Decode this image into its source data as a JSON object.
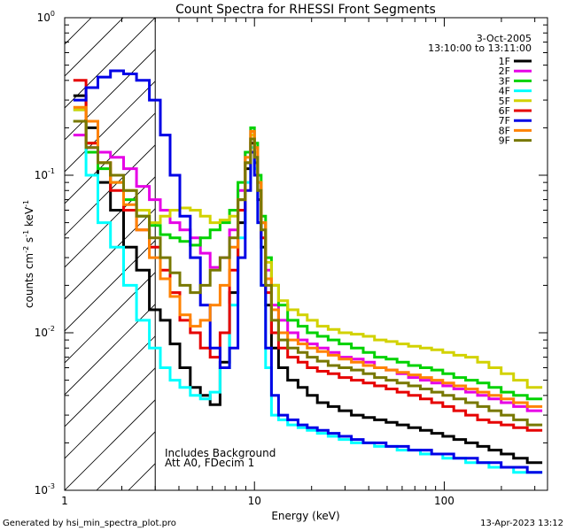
{
  "chart_data": {
    "type": "line",
    "step": true,
    "title": "Count Spectra for RHESSI Front Segments",
    "xlabel": "Energy (keV)",
    "ylabel_base": "counts cm",
    "ylabel_sup1": "-2",
    "ylabel_mid1": " s",
    "ylabel_sup2": "-1",
    "ylabel_mid2": " keV",
    "ylabel_sup3": "-1",
    "xscale": "log",
    "yscale": "log",
    "xlim": [
      1,
      350
    ],
    "ylim": [
      0.001,
      1
    ],
    "x_ticks": [
      {
        "value": 1,
        "label": "1"
      },
      {
        "value": 10,
        "label": "10"
      },
      {
        "value": 100,
        "label": "100"
      }
    ],
    "y_ticks": [
      {
        "value": 1,
        "base": "10",
        "exp": "0"
      },
      {
        "value": 0.1,
        "base": "10",
        "exp": "-1"
      },
      {
        "value": 0.01,
        "base": "10",
        "exp": "-2"
      },
      {
        "value": 0.001,
        "base": "10",
        "exp": "-3"
      }
    ],
    "shaded_region": {
      "x_from": 1,
      "x_to": 3
    },
    "date": "3-Oct-2005",
    "time_range": "13:10:00 to 13:11:00",
    "annotations": [
      "Includes Background",
      "Att A0, FDecim 1"
    ],
    "footer_left": "Generated by hsi_min_spectra_plot.pro",
    "footer_right": "13-Apr-2023 13:12",
    "energies": [
      1.2,
      1.4,
      1.6,
      1.9,
      2.2,
      2.6,
      3.0,
      3.4,
      3.8,
      4.3,
      4.9,
      5.5,
      6.2,
      7.0,
      7.8,
      8.6,
      9.3,
      9.8,
      10.2,
      10.6,
      11.1,
      11.8,
      12.8,
      14,
      16,
      18,
      20,
      23,
      26,
      30,
      35,
      40,
      46,
      53,
      60,
      70,
      80,
      92,
      105,
      120,
      140,
      160,
      185,
      215,
      250,
      300
    ],
    "series": [
      {
        "name": "1F",
        "color": "#000000",
        "values": [
          0.32,
          0.2,
          0.09,
          0.06,
          0.035,
          0.025,
          0.014,
          0.012,
          0.0085,
          0.006,
          0.0045,
          0.004,
          0.0035,
          0.0065,
          0.018,
          0.05,
          0.11,
          0.16,
          0.12,
          0.07,
          0.035,
          0.015,
          0.008,
          0.006,
          0.005,
          0.0045,
          0.004,
          0.0036,
          0.0034,
          0.0032,
          0.003,
          0.0029,
          0.0028,
          0.0027,
          0.0026,
          0.0025,
          0.0024,
          0.0023,
          0.0022,
          0.0021,
          0.002,
          0.0019,
          0.0018,
          0.0017,
          0.0016,
          0.0015
        ]
      },
      {
        "name": "2F",
        "color": "#e600e6",
        "values": [
          0.18,
          0.15,
          0.14,
          0.13,
          0.11,
          0.085,
          0.07,
          0.06,
          0.05,
          0.045,
          0.04,
          0.032,
          0.026,
          0.03,
          0.045,
          0.08,
          0.14,
          0.19,
          0.15,
          0.09,
          0.05,
          0.025,
          0.015,
          0.012,
          0.01,
          0.009,
          0.0085,
          0.008,
          0.0075,
          0.007,
          0.0068,
          0.0065,
          0.006,
          0.0058,
          0.0055,
          0.0052,
          0.005,
          0.0048,
          0.0046,
          0.0044,
          0.0042,
          0.004,
          0.0038,
          0.0036,
          0.0034,
          0.0032
        ]
      },
      {
        "name": "3F",
        "color": "#00d200",
        "values": [
          0.22,
          0.14,
          0.11,
          0.09,
          0.07,
          0.055,
          0.048,
          0.042,
          0.04,
          0.038,
          0.036,
          0.04,
          0.045,
          0.05,
          0.06,
          0.09,
          0.14,
          0.2,
          0.16,
          0.1,
          0.055,
          0.03,
          0.02,
          0.015,
          0.012,
          0.011,
          0.01,
          0.0095,
          0.009,
          0.0085,
          0.008,
          0.0075,
          0.007,
          0.0068,
          0.0065,
          0.0062,
          0.006,
          0.0058,
          0.0055,
          0.0052,
          0.005,
          0.0048,
          0.0045,
          0.0042,
          0.004,
          0.0038
        ]
      },
      {
        "name": "4F",
        "color": "#00ffff",
        "values": [
          0.26,
          0.1,
          0.05,
          0.035,
          0.02,
          0.012,
          0.008,
          0.006,
          0.005,
          0.0045,
          0.004,
          0.0038,
          0.0042,
          0.006,
          0.015,
          0.04,
          0.09,
          0.15,
          0.11,
          0.05,
          0.02,
          0.006,
          0.003,
          0.0028,
          0.0026,
          0.0025,
          0.0024,
          0.0023,
          0.0022,
          0.0021,
          0.002,
          0.002,
          0.0019,
          0.0019,
          0.0018,
          0.0018,
          0.0017,
          0.0017,
          0.0016,
          0.0016,
          0.0015,
          0.0015,
          0.0014,
          0.0014,
          0.0013,
          0.0013
        ]
      },
      {
        "name": "5F",
        "color": "#d2d200",
        "values": [
          0.26,
          0.16,
          0.12,
          0.1,
          0.08,
          0.06,
          0.05,
          0.055,
          0.06,
          0.062,
          0.06,
          0.055,
          0.05,
          0.052,
          0.055,
          0.07,
          0.12,
          0.18,
          0.14,
          0.09,
          0.05,
          0.028,
          0.02,
          0.016,
          0.014,
          0.013,
          0.012,
          0.011,
          0.0105,
          0.01,
          0.0098,
          0.0095,
          0.009,
          0.0088,
          0.0085,
          0.0082,
          0.008,
          0.0078,
          0.0075,
          0.0072,
          0.007,
          0.0065,
          0.006,
          0.0055,
          0.005,
          0.0045
        ]
      },
      {
        "name": "6F",
        "color": "#e60000",
        "values": [
          0.4,
          0.16,
          0.12,
          0.08,
          0.06,
          0.045,
          0.035,
          0.025,
          0.018,
          0.012,
          0.01,
          0.008,
          0.007,
          0.01,
          0.025,
          0.06,
          0.12,
          0.17,
          0.13,
          0.08,
          0.04,
          0.018,
          0.01,
          0.008,
          0.007,
          0.0065,
          0.006,
          0.0057,
          0.0055,
          0.0052,
          0.005,
          0.0048,
          0.0046,
          0.0044,
          0.0042,
          0.004,
          0.0038,
          0.0036,
          0.0034,
          0.0032,
          0.003,
          0.0028,
          0.0027,
          0.0026,
          0.0025,
          0.0024
        ]
      },
      {
        "name": "7F",
        "color": "#0000e6",
        "values": [
          0.3,
          0.36,
          0.42,
          0.46,
          0.44,
          0.4,
          0.3,
          0.18,
          0.1,
          0.055,
          0.03,
          0.015,
          0.008,
          0.006,
          0.008,
          0.03,
          0.08,
          0.14,
          0.1,
          0.05,
          0.02,
          0.008,
          0.004,
          0.003,
          0.0028,
          0.0026,
          0.0025,
          0.0024,
          0.0023,
          0.0022,
          0.0021,
          0.002,
          0.002,
          0.0019,
          0.0019,
          0.0018,
          0.0018,
          0.0017,
          0.0017,
          0.0016,
          0.0016,
          0.0015,
          0.0015,
          0.0014,
          0.0014,
          0.0013
        ]
      },
      {
        "name": "8F",
        "color": "#ff8200",
        "values": [
          0.27,
          0.22,
          0.12,
          0.09,
          0.065,
          0.045,
          0.03,
          0.022,
          0.017,
          0.013,
          0.011,
          0.012,
          0.015,
          0.02,
          0.035,
          0.07,
          0.13,
          0.19,
          0.15,
          0.09,
          0.05,
          0.022,
          0.014,
          0.01,
          0.009,
          0.0085,
          0.008,
          0.0076,
          0.0072,
          0.0068,
          0.0065,
          0.0062,
          0.006,
          0.0058,
          0.0056,
          0.0054,
          0.0052,
          0.005,
          0.0048,
          0.0046,
          0.0044,
          0.0042,
          0.004,
          0.0038,
          0.0036,
          0.0034
        ]
      },
      {
        "name": "9F",
        "color": "#787800",
        "values": [
          0.22,
          0.15,
          0.12,
          0.1,
          0.08,
          0.055,
          0.04,
          0.03,
          0.024,
          0.02,
          0.018,
          0.02,
          0.025,
          0.03,
          0.04,
          0.07,
          0.12,
          0.17,
          0.13,
          0.08,
          0.045,
          0.02,
          0.012,
          0.009,
          0.008,
          0.0075,
          0.007,
          0.0066,
          0.0062,
          0.006,
          0.0058,
          0.0055,
          0.0052,
          0.005,
          0.0048,
          0.0046,
          0.0044,
          0.0042,
          0.004,
          0.0038,
          0.0036,
          0.0034,
          0.0032,
          0.003,
          0.0028,
          0.0026
        ]
      }
    ]
  }
}
